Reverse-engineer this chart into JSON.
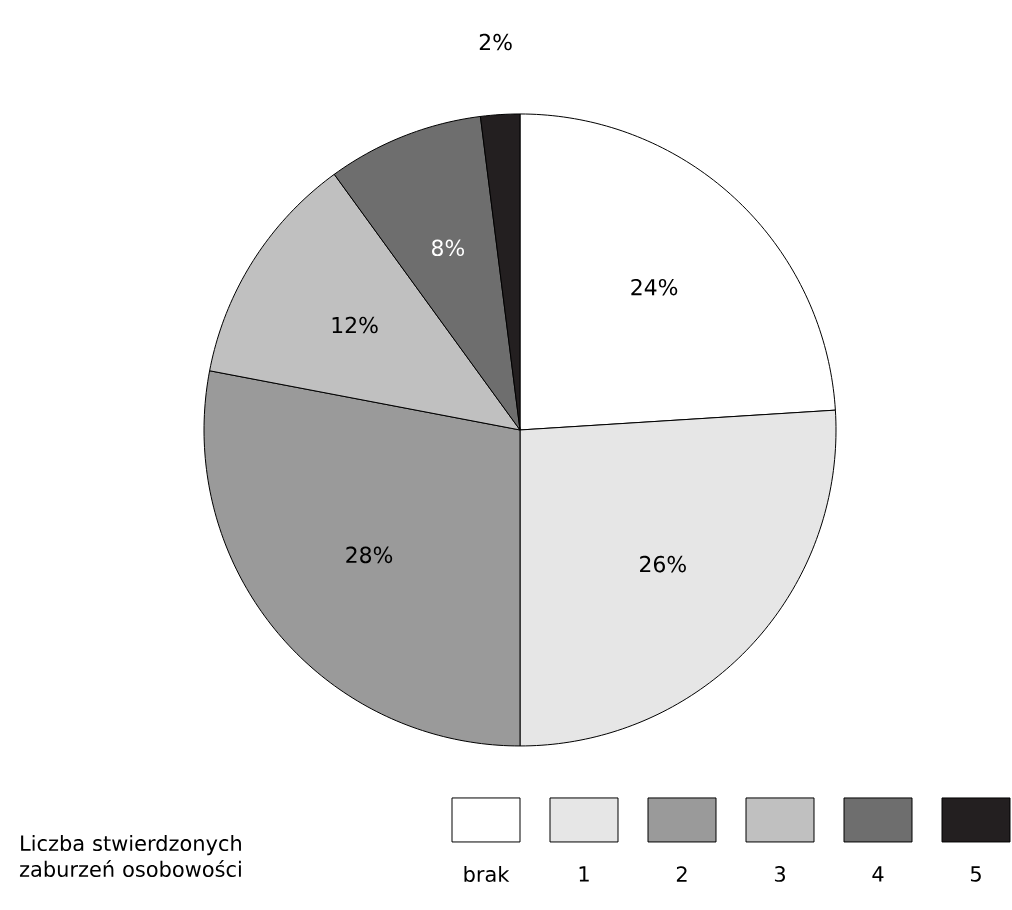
{
  "chart_data": {
    "type": "pie",
    "legend_title": "Liczba stwierdzonych zaburzeń osobowości",
    "categories": [
      "brak",
      "1",
      "2",
      "3",
      "4",
      "5"
    ],
    "values": [
      24,
      26,
      28,
      12,
      8,
      2
    ],
    "value_labels": [
      "24%",
      "26%",
      "28%",
      "12%",
      "8%",
      "2%"
    ],
    "colors": [
      "#ffffff",
      "#e6e6e6",
      "#9a9a9a",
      "#c0c0c0",
      "#6e6e6e",
      "#231f20"
    ],
    "legend": "bottom"
  }
}
